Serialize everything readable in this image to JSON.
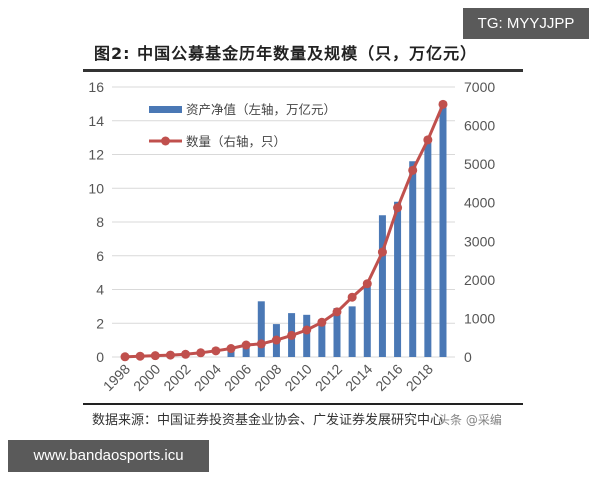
{
  "header": {
    "title": "图2:  中国公募基金历年数量及规模（只，万亿元）"
  },
  "overlays": {
    "tg_badge": "TG: MYYJJPP",
    "site_badge": "www.bandaosports.icu",
    "inline_watermark": "头条 @采编"
  },
  "footer": {
    "source": "数据来源：中国证券投资基金业协会、广发证券发展研究中心"
  },
  "colors": {
    "bar": "#4a78b5",
    "line": "#c0504d",
    "grid": "#d9d9d9",
    "text": "#555555"
  },
  "chart_data": {
    "type": "bar+line",
    "title": "中国公募基金历年数量及规模（只，万亿元）",
    "categories": [
      "1998",
      "1999",
      "2000",
      "2001",
      "2002",
      "2003",
      "2004",
      "2005",
      "2006",
      "2007",
      "2008",
      "2009",
      "2010",
      "2011",
      "2012",
      "2013",
      "2014",
      "2015",
      "2016",
      "2017",
      "2018",
      "2019"
    ],
    "x_tick_labels": [
      "1998",
      "2000",
      "2002",
      "2004",
      "2006",
      "2008",
      "2010",
      "2012",
      "2014",
      "2016",
      "2018"
    ],
    "series": [
      {
        "name": "资产净值（左轴，万亿元）",
        "type": "bar",
        "axis": "left",
        "values": [
          0.0,
          0.0,
          0.0,
          0.0,
          0.0,
          0.0,
          0.0,
          0.5,
          0.7,
          3.3,
          1.95,
          2.6,
          2.5,
          2.2,
          2.9,
          3.0,
          4.5,
          8.4,
          9.2,
          11.6,
          13.0,
          14.8
        ]
      },
      {
        "name": "数量（右轴，只）",
        "type": "line",
        "axis": "right",
        "values": [
          5,
          20,
          35,
          50,
          70,
          110,
          160,
          220,
          310,
          340,
          440,
          560,
          700,
          900,
          1170,
          1550,
          1900,
          2720,
          3870,
          4840,
          5630,
          6550
        ]
      }
    ],
    "left_axis": {
      "ylim": [
        0,
        16
      ],
      "ticks": [
        0,
        2,
        4,
        6,
        8,
        10,
        12,
        14,
        16
      ]
    },
    "right_axis": {
      "ylim": [
        0,
        7000
      ],
      "ticks": [
        0,
        1000,
        2000,
        3000,
        4000,
        5000,
        6000,
        7000
      ]
    },
    "grid": true,
    "legend_position": "upper-left-inside"
  }
}
